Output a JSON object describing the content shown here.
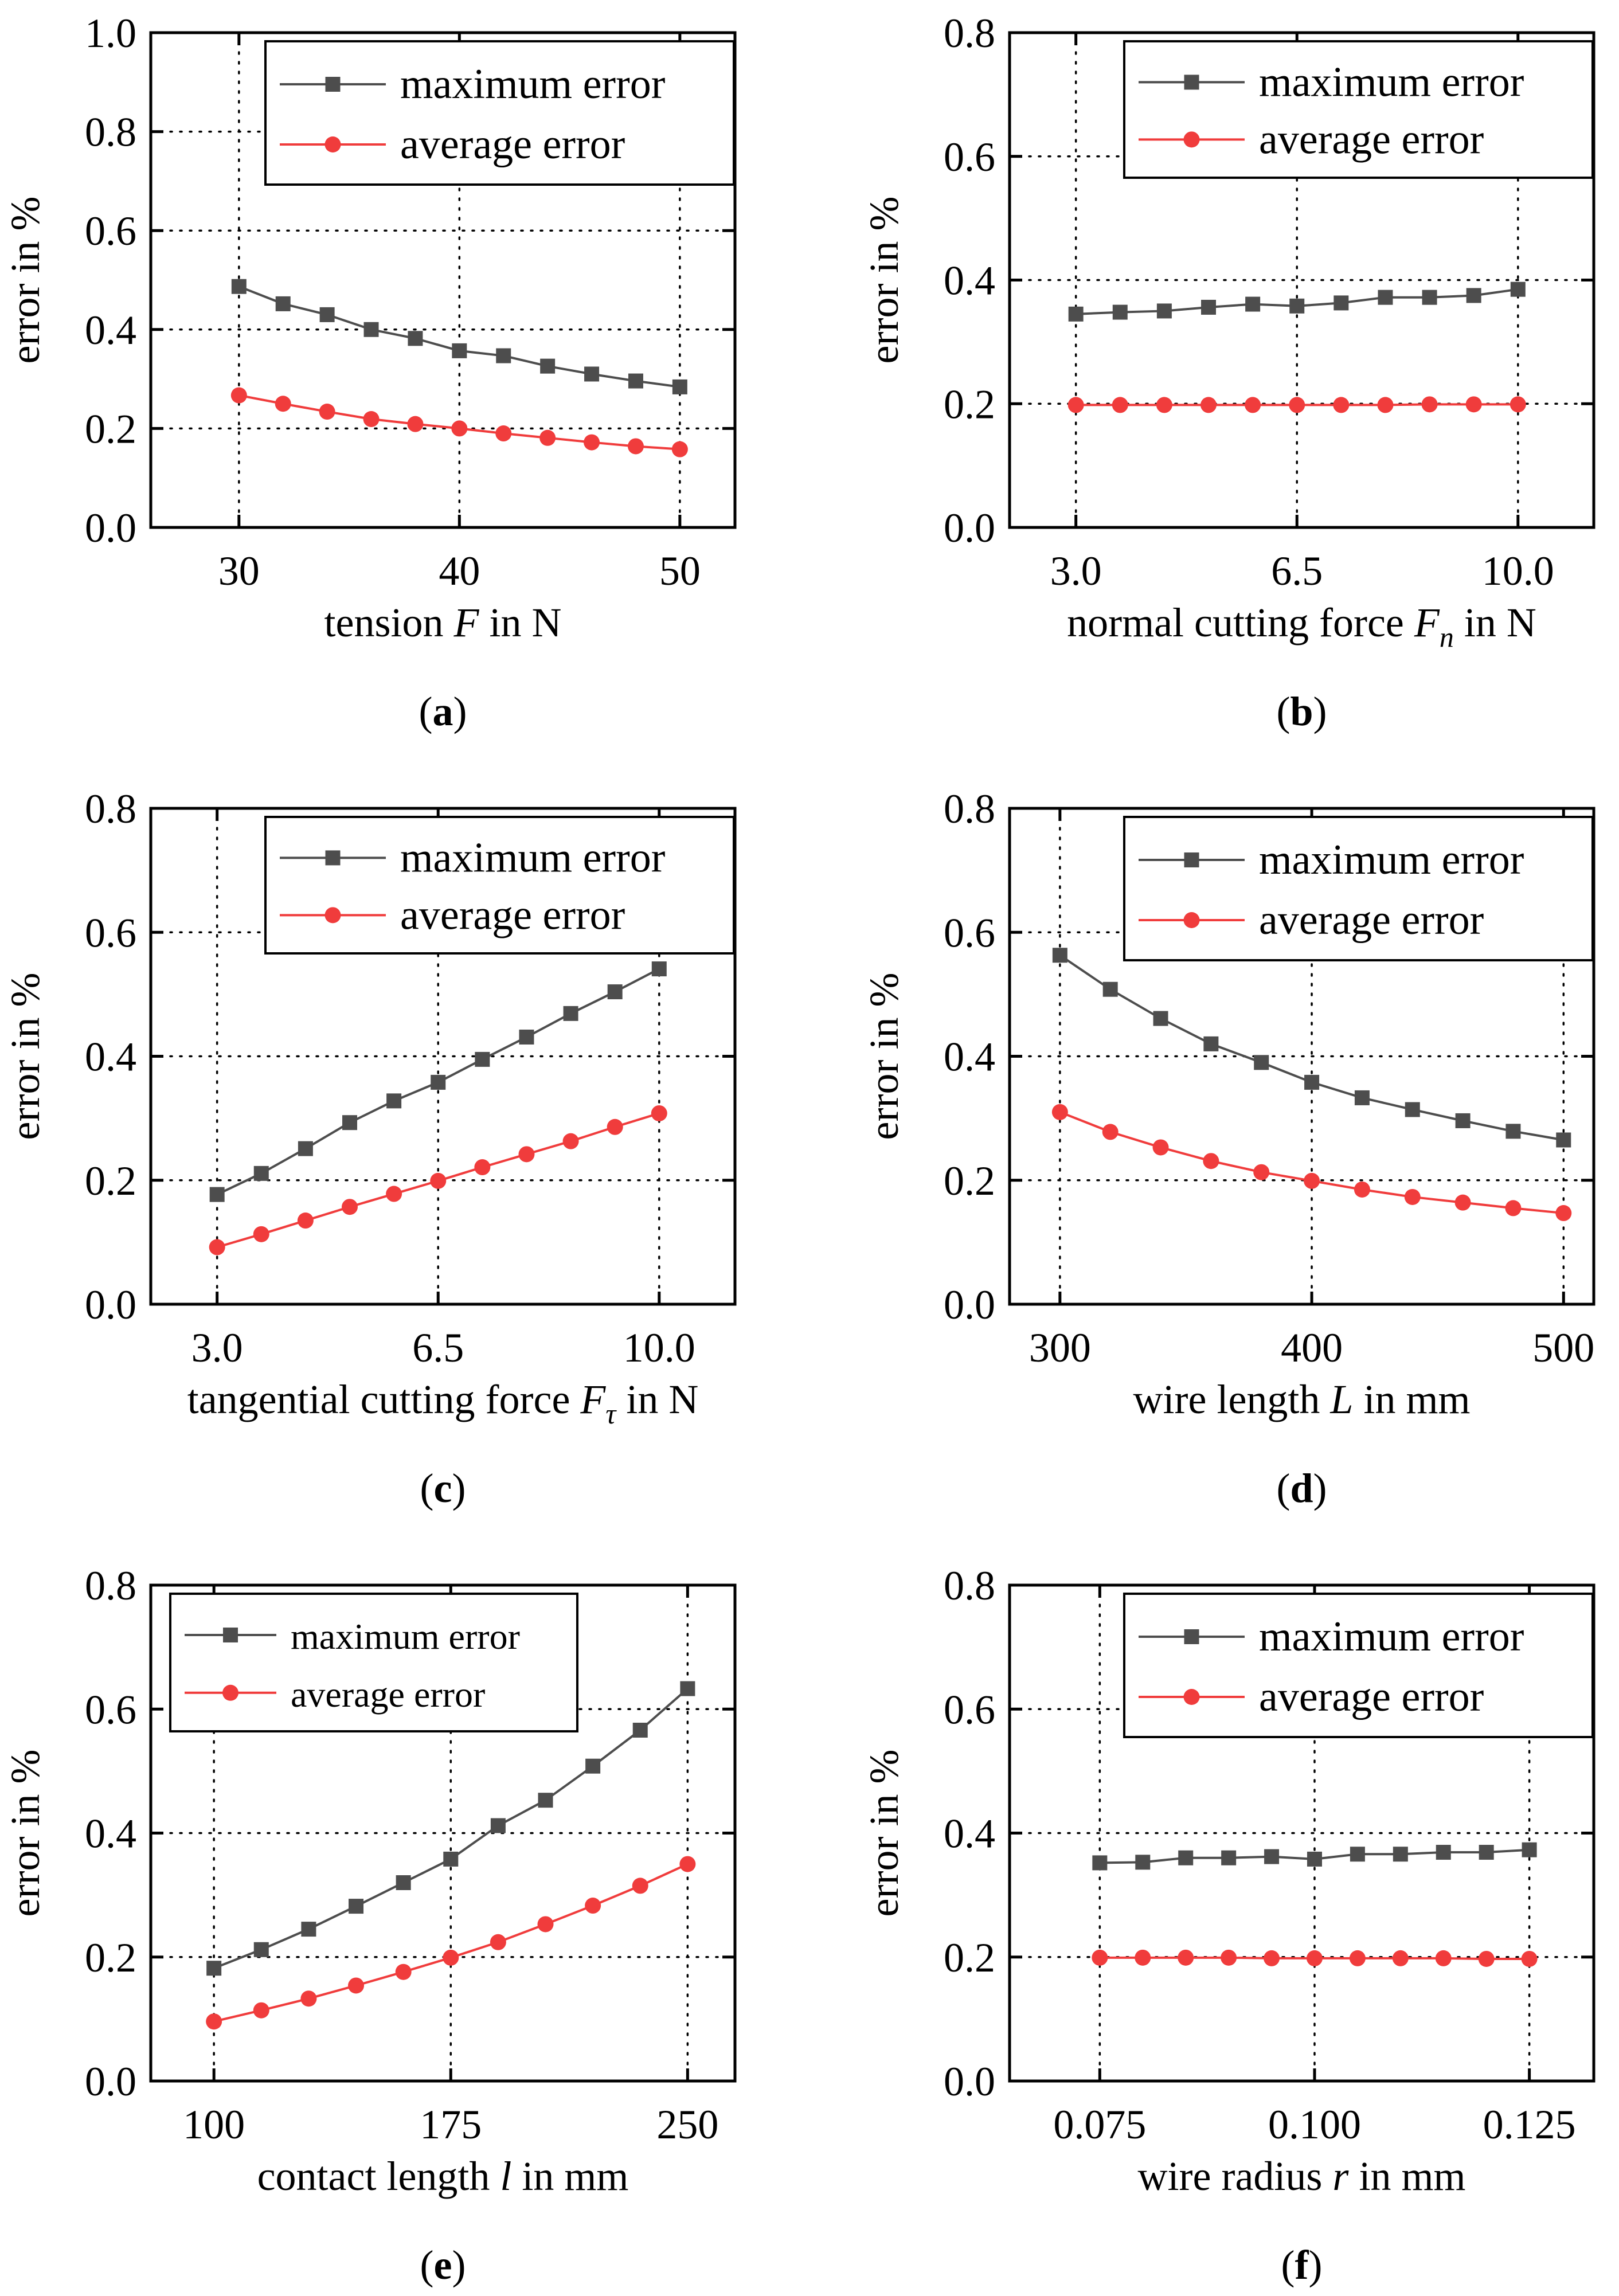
{
  "series_colors": {
    "maximum": "#4d4d4d",
    "average": "#f03c3c"
  },
  "chart_data": [
    {
      "type": "line",
      "panel_label": "a",
      "xlabel": {
        "pre": "tension ",
        "var": "F",
        "sub": "",
        "post": " in N"
      },
      "ylabel": "error in %",
      "xlim": [
        26,
        52.5
      ],
      "ylim": [
        0,
        1.0
      ],
      "xticks": [
        30,
        40,
        50
      ],
      "xtick_labels": [
        "30",
        "40",
        "50"
      ],
      "yticks": [
        0,
        0.2,
        0.4,
        0.6,
        0.8,
        1.0
      ],
      "ytick_labels": [
        "0.0",
        "0.2",
        "0.4",
        "0.6",
        "0.8",
        "1.0"
      ],
      "legend": "top-right",
      "grid": "dotted",
      "x": [
        30,
        32,
        34,
        36,
        38,
        40,
        42,
        44,
        46,
        48,
        50
      ],
      "series": [
        {
          "name": "maximum error",
          "marker": "square",
          "values": [
            0.487,
            0.452,
            0.43,
            0.4,
            0.382,
            0.357,
            0.347,
            0.326,
            0.31,
            0.296,
            0.284
          ]
        },
        {
          "name": "average error",
          "marker": "circle",
          "values": [
            0.267,
            0.25,
            0.234,
            0.219,
            0.209,
            0.2,
            0.19,
            0.181,
            0.172,
            0.164,
            0.158
          ]
        }
      ]
    },
    {
      "type": "line",
      "panel_label": "b",
      "xlabel": {
        "pre": "normal cutting force ",
        "var": "F",
        "sub": "n",
        "post": " in N"
      },
      "ylabel": "error in %",
      "xlim": [
        1.95,
        11.2
      ],
      "ylim": [
        0,
        0.8
      ],
      "xticks": [
        3.0,
        6.5,
        10.0
      ],
      "xtick_labels": [
        "3.0",
        "6.5",
        "10.0"
      ],
      "yticks": [
        0,
        0.2,
        0.4,
        0.6,
        0.8
      ],
      "ytick_labels": [
        "0.0",
        "0.2",
        "0.4",
        "0.6",
        "0.8"
      ],
      "legend": "top-right",
      "grid": "dotted",
      "x": [
        3.0,
        3.7,
        4.4,
        5.1,
        5.8,
        6.5,
        7.2,
        7.9,
        8.6,
        9.3,
        10.0
      ],
      "series": [
        {
          "name": "maximum error",
          "marker": "square",
          "values": [
            0.345,
            0.348,
            0.35,
            0.356,
            0.361,
            0.358,
            0.363,
            0.372,
            0.372,
            0.375,
            0.385
          ]
        },
        {
          "name": "average error",
          "marker": "circle",
          "values": [
            0.198,
            0.198,
            0.198,
            0.198,
            0.198,
            0.198,
            0.198,
            0.198,
            0.199,
            0.199,
            0.199
          ]
        }
      ]
    },
    {
      "type": "line",
      "panel_label": "c",
      "xlabel": {
        "pre": "tangential cutting force ",
        "var": "F",
        "sub": "τ",
        "post": " in N"
      },
      "ylabel": "error in %",
      "xlim": [
        1.95,
        11.2
      ],
      "ylim": [
        0,
        0.8
      ],
      "xticks": [
        3.0,
        6.5,
        10.0
      ],
      "xtick_labels": [
        "3.0",
        "6.5",
        "10.0"
      ],
      "yticks": [
        0,
        0.2,
        0.4,
        0.6,
        0.8
      ],
      "ytick_labels": [
        "0.0",
        "0.2",
        "0.4",
        "0.6",
        "0.8"
      ],
      "legend": "top-right",
      "grid": "dotted",
      "x": [
        3.0,
        3.7,
        4.4,
        5.1,
        5.8,
        6.5,
        7.2,
        7.9,
        8.6,
        9.3,
        10.0
      ],
      "series": [
        {
          "name": "maximum error",
          "marker": "square",
          "values": [
            0.177,
            0.211,
            0.251,
            0.293,
            0.328,
            0.358,
            0.395,
            0.431,
            0.469,
            0.504,
            0.541
          ]
        },
        {
          "name": "average error",
          "marker": "circle",
          "values": [
            0.092,
            0.113,
            0.135,
            0.157,
            0.178,
            0.199,
            0.221,
            0.242,
            0.263,
            0.286,
            0.308
          ]
        }
      ]
    },
    {
      "type": "line",
      "panel_label": "d",
      "xlabel": {
        "pre": "wire length ",
        "var": "L",
        "sub": "",
        "post": " in mm"
      },
      "ylabel": "error in %",
      "xlim": [
        280,
        512
      ],
      "ylim": [
        0,
        0.8
      ],
      "xticks": [
        300,
        400,
        500
      ],
      "xtick_labels": [
        "300",
        "400",
        "500"
      ],
      "yticks": [
        0,
        0.2,
        0.4,
        0.6,
        0.8
      ],
      "ytick_labels": [
        "0.0",
        "0.2",
        "0.4",
        "0.6",
        "0.8"
      ],
      "legend": "top-right",
      "grid": "dotted",
      "x": [
        300,
        320,
        340,
        360,
        380,
        400,
        420,
        440,
        460,
        480,
        500
      ],
      "series": [
        {
          "name": "maximum error",
          "marker": "square",
          "values": [
            0.563,
            0.508,
            0.461,
            0.42,
            0.39,
            0.358,
            0.333,
            0.314,
            0.296,
            0.279,
            0.265
          ]
        },
        {
          "name": "average error",
          "marker": "circle",
          "values": [
            0.31,
            0.278,
            0.253,
            0.231,
            0.213,
            0.199,
            0.185,
            0.173,
            0.164,
            0.155,
            0.147
          ]
        }
      ]
    },
    {
      "type": "line",
      "panel_label": "e",
      "xlabel": {
        "pre": "contact length ",
        "var": "l",
        "sub": "",
        "post": " in mm"
      },
      "ylabel": "error in %",
      "xlim": [
        80,
        265
      ],
      "ylim": [
        0,
        0.8
      ],
      "xticks": [
        100,
        175,
        250
      ],
      "xtick_labels": [
        "100",
        "175",
        "250"
      ],
      "yticks": [
        0,
        0.2,
        0.4,
        0.6,
        0.8
      ],
      "ytick_labels": [
        "0.0",
        "0.2",
        "0.4",
        "0.6",
        "0.8"
      ],
      "legend": "top-right",
      "grid": "dotted",
      "x": [
        100,
        115,
        130,
        145,
        160,
        175,
        190,
        205,
        220,
        235,
        250
      ],
      "series": [
        {
          "name": "maximum error",
          "marker": "square",
          "values": [
            0.182,
            0.212,
            0.245,
            0.282,
            0.32,
            0.358,
            0.412,
            0.453,
            0.508,
            0.566,
            0.633
          ]
        },
        {
          "name": "average error",
          "marker": "circle",
          "values": [
            0.096,
            0.114,
            0.133,
            0.154,
            0.176,
            0.199,
            0.224,
            0.253,
            0.283,
            0.315,
            0.35
          ]
        }
      ]
    },
    {
      "type": "line",
      "panel_label": "f",
      "xlabel": {
        "pre": "wire radius ",
        "var": "r",
        "sub": "",
        "post": " in mm"
      },
      "ylabel": "error in %",
      "xlim": [
        0.0645,
        0.1325
      ],
      "ylim": [
        0,
        0.8
      ],
      "xticks": [
        0.075,
        0.1,
        0.125
      ],
      "xtick_labels": [
        "0.075",
        "0.100",
        "0.125"
      ],
      "yticks": [
        0,
        0.2,
        0.4,
        0.6,
        0.8
      ],
      "ytick_labels": [
        "0.0",
        "0.2",
        "0.4",
        "0.6",
        "0.8"
      ],
      "legend": "top-right",
      "grid": "dotted",
      "x": [
        0.075,
        0.08,
        0.085,
        0.09,
        0.095,
        0.1,
        0.105,
        0.11,
        0.115,
        0.12,
        0.125
      ],
      "series": [
        {
          "name": "maximum error",
          "marker": "square",
          "values": [
            0.352,
            0.353,
            0.36,
            0.36,
            0.362,
            0.358,
            0.366,
            0.366,
            0.369,
            0.369,
            0.373
          ]
        },
        {
          "name": "average error",
          "marker": "circle",
          "values": [
            0.199,
            0.199,
            0.199,
            0.199,
            0.198,
            0.198,
            0.198,
            0.198,
            0.198,
            0.197,
            0.197
          ]
        }
      ]
    }
  ]
}
